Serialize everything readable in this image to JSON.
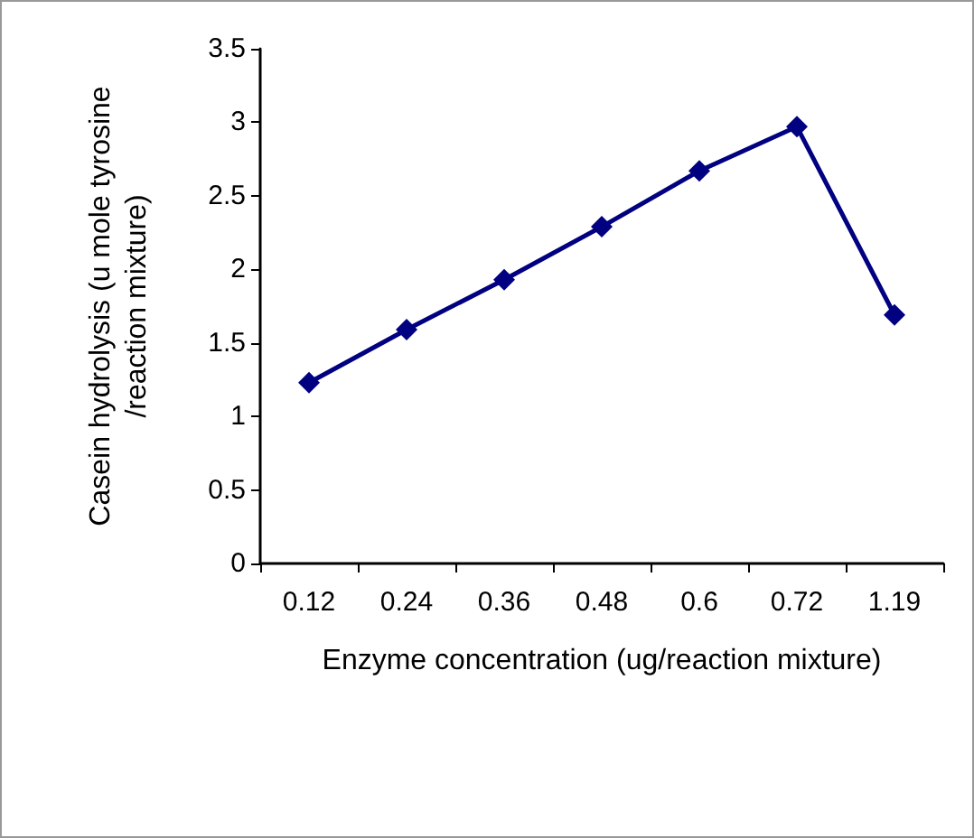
{
  "chart_data": {
    "type": "line",
    "xlabel": "Enzyme concentration (ug/reaction mixture)",
    "ylabel": "Casein hydrolysis (u mole tyrosine\n/reaction mixture)",
    "categories": [
      "0.12",
      "0.24",
      "0.36",
      "0.48",
      "0.6",
      "0.72",
      "1.19"
    ],
    "series": [
      {
        "color": "#000080",
        "values": [
          1.23,
          1.59,
          1.93,
          2.29,
          2.67,
          2.97,
          1.69
        ]
      }
    ],
    "ylim": [
      0,
      3.5
    ],
    "yticks": [
      0,
      0.5,
      1,
      1.5,
      2,
      2.5,
      3,
      3.5
    ],
    "grid": false,
    "marker": "diamond",
    "line_style": "solid"
  }
}
